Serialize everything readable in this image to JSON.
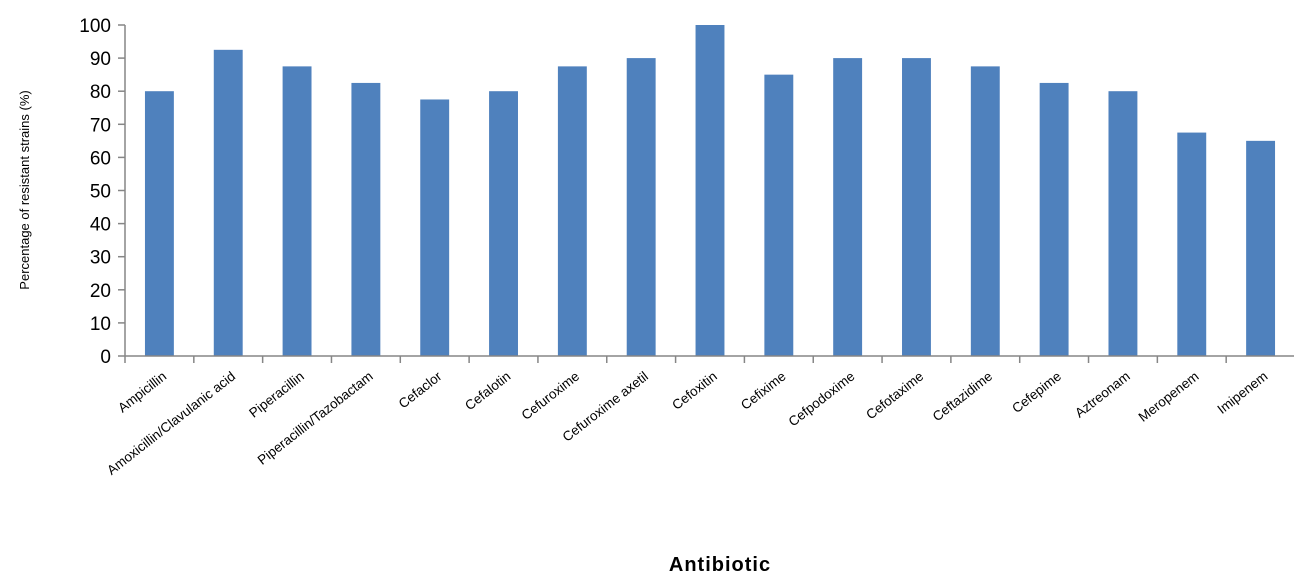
{
  "chart_data": {
    "type": "bar",
    "title": "",
    "xlabel": "Antibiotic",
    "ylabel": "Percentage of resistant strains (%)",
    "ylim": [
      0,
      100
    ],
    "yticks": [
      0,
      10,
      20,
      30,
      40,
      50,
      60,
      70,
      80,
      90,
      100
    ],
    "grid": false,
    "legend": "none",
    "bar_color": "#4f81bd",
    "categories": [
      "Ampicillin",
      "Amoxicillin/Clavulanic acid",
      "Piperacillin",
      "Piperacillin/Tazobactam",
      "Cefaclor",
      "Cefalotin",
      "Cefuroxime",
      "Cefuroxime axetil",
      "Cefoxitin",
      "Cefixime",
      "Cefpodoxime",
      "Cefotaxime",
      "Ceftazidime",
      "Cefepime",
      "Aztreonam",
      "Meropenem",
      "Imipenem"
    ],
    "values": [
      80,
      92.5,
      87.5,
      82.5,
      77.5,
      80,
      87.5,
      90,
      100,
      85,
      90,
      90,
      87.5,
      82.5,
      80,
      67.5,
      65
    ]
  }
}
